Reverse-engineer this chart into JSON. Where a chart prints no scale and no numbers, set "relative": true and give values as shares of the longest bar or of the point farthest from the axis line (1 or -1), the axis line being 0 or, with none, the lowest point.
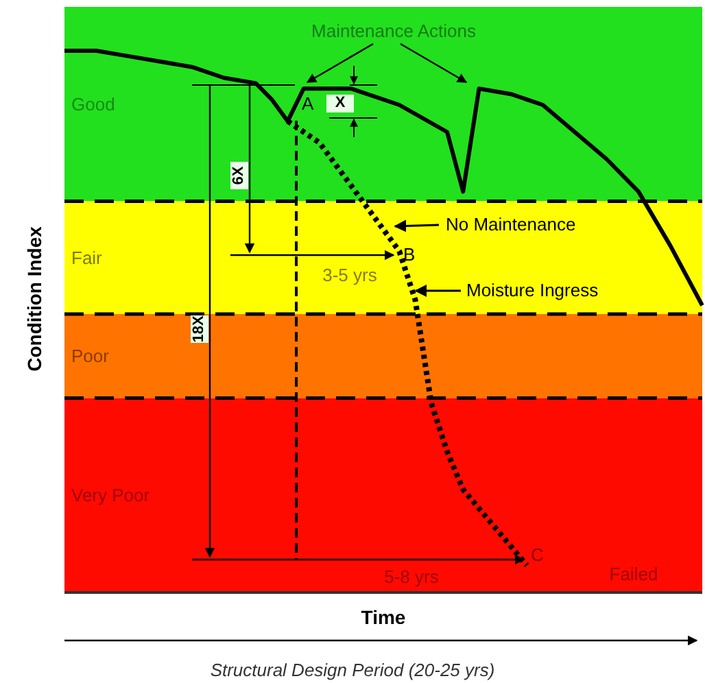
{
  "chart_data": {
    "type": "line",
    "relative": true,
    "xlabel": "Time",
    "ylabel": "Condition Index",
    "categories": [
      null,
      null,
      null,
      null,
      null,
      null,
      null,
      null,
      null,
      null,
      null,
      null,
      null,
      null,
      null,
      null,
      null,
      null,
      null,
      null,
      null,
      null,
      null,
      null,
      null,
      null,
      null,
      null,
      null,
      null,
      null,
      null,
      null,
      null,
      null,
      null,
      null,
      null,
      null,
      null,
      null
    ],
    "series": [
      {
        "color": "#000000",
        "line_style": "solid",
        "values": [
          1.0,
          null,
          1.0,
          null,
          0.99,
          null,
          0.98,
          null,
          0.97,
          null,
          0.95,
          null,
          0.94,
          0.91,
          0.87,
          0.93,
          null,
          null,
          0.93,
          null,
          null,
          0.9,
          null,
          null,
          0.85,
          0.74,
          0.93,
          null,
          0.92,
          null,
          0.9,
          null,
          0.85,
          null,
          0.8,
          null,
          0.74,
          null,
          0.64,
          null,
          0.53
        ]
      },
      {
        "color": "#000000",
        "line_style": "dotted",
        "values": [
          null,
          null,
          null,
          null,
          null,
          null,
          null,
          null,
          null,
          null,
          null,
          null,
          null,
          null,
          0.87,
          null,
          0.83,
          null,
          0.75,
          null,
          0.67,
          0.63,
          0.54,
          0.35,
          0.26,
          0.19,
          null,
          0.12,
          null,
          0.05,
          null,
          null,
          null,
          null,
          null,
          null,
          null,
          null,
          null,
          null,
          null
        ]
      }
    ],
    "bands": [
      {
        "axis": "y",
        "from": 0.722,
        "to": 1.081,
        "label": "Good",
        "color": "#22e01e"
      },
      {
        "axis": "y",
        "from": 0.514,
        "to": 0.722,
        "label": "Fair",
        "color": "#ffff00"
      },
      {
        "axis": "y",
        "from": 0.359,
        "to": 0.514,
        "label": "Poor",
        "color": "#ff7400"
      },
      {
        "axis": "y",
        "from": 0,
        "to": 0.359,
        "label": "Very Poor",
        "color": "#ff0a00"
      }
    ],
    "annotations": [
      "Maintenance Actions",
      "X",
      "6X",
      "18X",
      "A",
      "B",
      "C",
      "No Maintenance",
      "Moisture Ingress",
      "3-5 yrs",
      "5-8 yrs",
      "Failed",
      "Structural Design Period (20-25 yrs)"
    ]
  }
}
